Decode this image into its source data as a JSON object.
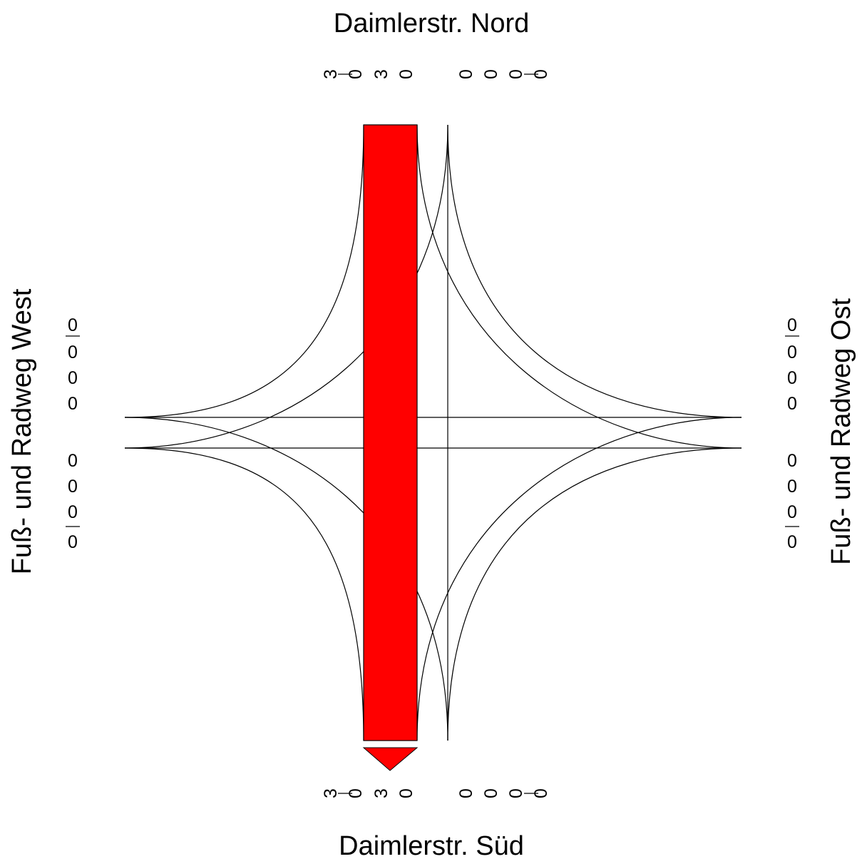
{
  "arms": {
    "north": {
      "title": "Daimlerstr. Nord"
    },
    "south": {
      "title": "Daimlerstr. Süd"
    },
    "west": {
      "title": "Fuß- und Radweg West"
    },
    "east": {
      "title": "Fuß- und Radweg Ost"
    }
  },
  "counts": {
    "north": {
      "in": [
        "3",
        "0",
        "3",
        "0"
      ],
      "out": [
        "0",
        "0",
        "0",
        "0"
      ]
    },
    "south": {
      "in": [
        "3",
        "0",
        "3",
        "0"
      ],
      "out": [
        "0",
        "0",
        "0",
        "0"
      ]
    },
    "west": {
      "upper": [
        "0",
        "0",
        "0",
        "0"
      ],
      "lower": [
        "0",
        "0",
        "0",
        "0"
      ]
    },
    "east": {
      "upper": [
        "0",
        "0",
        "0",
        "0"
      ],
      "lower": [
        "0",
        "0",
        "0",
        "0"
      ]
    }
  },
  "colors": {
    "main_flow": "#ff0000",
    "lines": "#000000",
    "background": "#ffffff"
  },
  "main_flow": {
    "from": "Daimlerstr. Nord",
    "to": "Daimlerstr. Süd",
    "volume": 3
  }
}
